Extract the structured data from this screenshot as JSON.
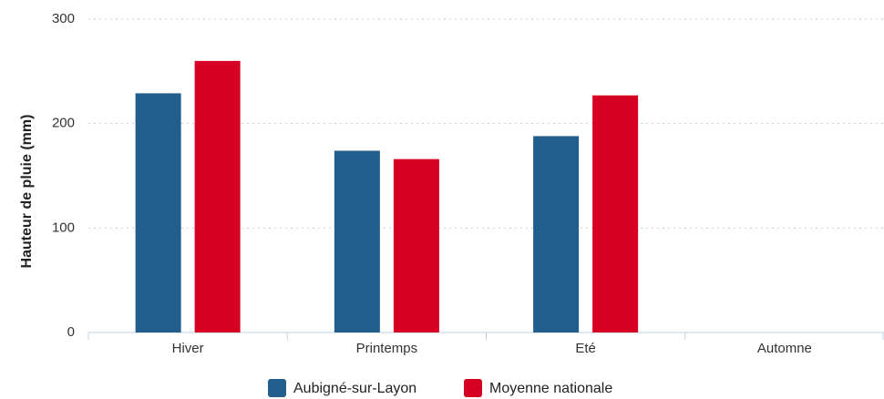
{
  "chart_data": {
    "type": "bar",
    "y_label": "Hauteur de pluie (mm)",
    "categories": [
      "Hiver",
      "Printemps",
      "Eté",
      "Automne"
    ],
    "series": [
      {
        "name": "Aubigné-sur-Layon",
        "color": "#215d8d",
        "values": [
          229,
          174,
          188,
          null
        ]
      },
      {
        "name": "Moyenne nationale",
        "color": "#d50022",
        "values": [
          260,
          166,
          227,
          null
        ]
      }
    ],
    "ylim": [
      0,
      300
    ],
    "yticks": [
      0,
      100,
      200,
      300
    ],
    "grid": true
  }
}
